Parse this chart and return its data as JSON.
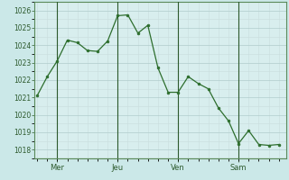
{
  "background_color": "#cbe8e8",
  "plot_bg_color": "#d8eeee",
  "grid_color_major": "#b0cccc",
  "grid_color_minor": "#c8dddd",
  "line_color": "#2d6e2d",
  "marker_color": "#2d6e2d",
  "ylim": [
    1017.5,
    1026.5
  ],
  "yticks": [
    1018,
    1019,
    1020,
    1021,
    1022,
    1023,
    1024,
    1025,
    1026
  ],
  "day_labels": [
    "Mer",
    "Jeu",
    "Ven",
    "Sam"
  ],
  "day_positions": [
    0.083,
    0.333,
    0.583,
    0.833
  ],
  "vline_positions": [
    0.083,
    0.333,
    0.583,
    0.833
  ],
  "x": [
    0.0,
    0.042,
    0.083,
    0.125,
    0.167,
    0.208,
    0.25,
    0.292,
    0.333,
    0.375,
    0.417,
    0.458,
    0.5,
    0.542,
    0.583,
    0.625,
    0.667,
    0.708,
    0.75,
    0.792,
    0.833,
    0.875,
    0.917,
    0.958,
    1.0
  ],
  "y": [
    1021.1,
    1022.2,
    1023.1,
    1024.3,
    1024.15,
    1023.7,
    1023.65,
    1024.25,
    1025.7,
    1025.75,
    1024.7,
    1025.15,
    1022.7,
    1021.3,
    1021.3,
    1022.2,
    1021.8,
    1021.5,
    1020.4,
    1019.65,
    1018.35,
    1019.1,
    1018.3,
    1018.25,
    1018.3
  ]
}
